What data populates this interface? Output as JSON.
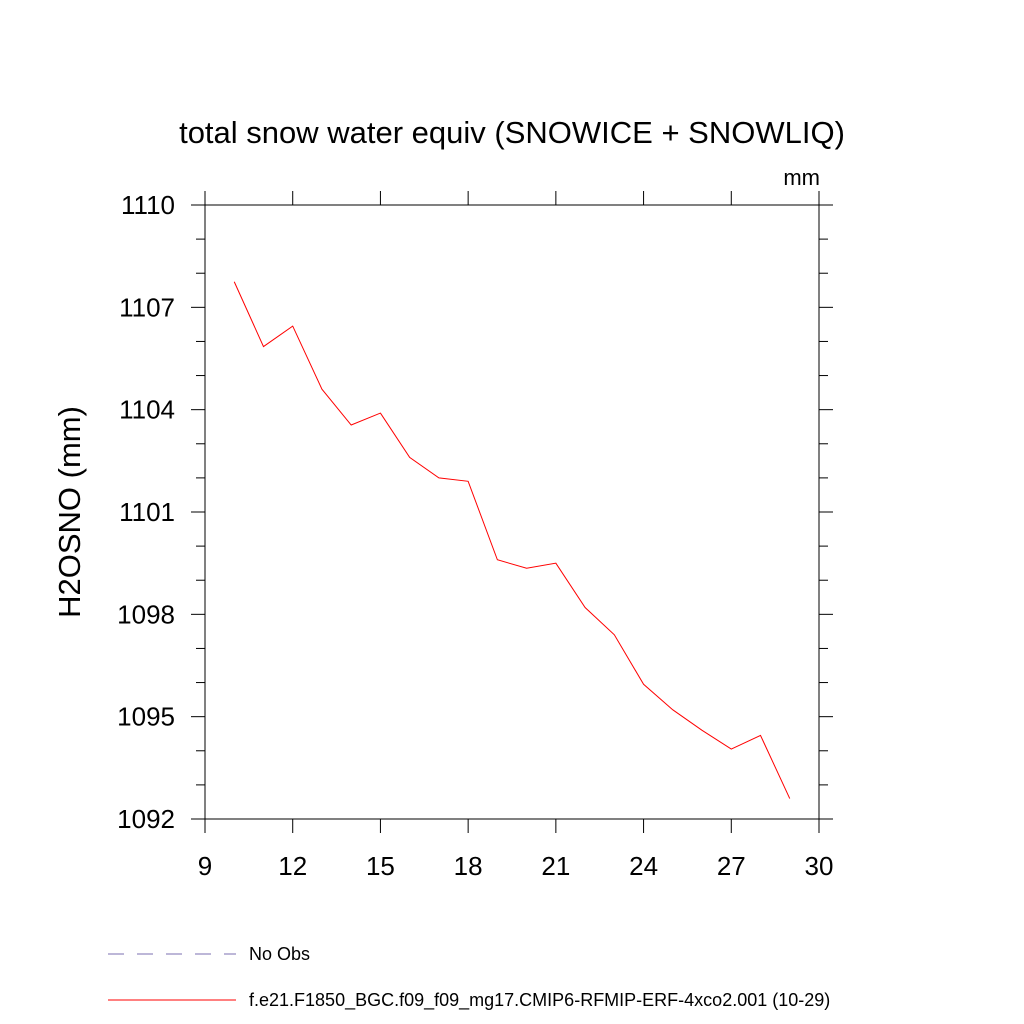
{
  "chart_data": {
    "type": "line",
    "title": "total snow water equiv (SNOWICE + SNOWLIQ)",
    "units": "mm",
    "ylabel": "H2OSNO  (mm)",
    "xlabel": "",
    "xlim": [
      9,
      30
    ],
    "ylim": [
      1092,
      1110
    ],
    "xticks": [
      9,
      12,
      15,
      18,
      21,
      24,
      27,
      30
    ],
    "yticks": [
      1092,
      1095,
      1098,
      1101,
      1104,
      1107,
      1110
    ],
    "grid": false,
    "series": [
      {
        "name": "f.e21.F1850_BGC.f09_f09_mg17.CMIP6-RFMIP-ERF-4xco2.001 (10-29)",
        "color": "#ff0000",
        "style": "solid",
        "x": [
          10,
          11,
          12,
          13,
          14,
          15,
          16,
          17,
          18,
          19,
          20,
          21,
          22,
          23,
          24,
          25,
          26,
          27,
          28,
          29
        ],
        "values": [
          1107.75,
          1105.85,
          1106.45,
          1104.6,
          1103.55,
          1103.9,
          1102.6,
          1102.0,
          1101.9,
          1099.6,
          1099.35,
          1099.5,
          1098.2,
          1097.4,
          1095.95,
          1095.2,
          1094.6,
          1094.05,
          1094.45,
          1092.6
        ]
      }
    ],
    "legend": [
      {
        "label": "No Obs",
        "color": "#7b6fb0",
        "style": "dashed"
      },
      {
        "label": "f.e21.F1850_BGC.f09_f09_mg17.CMIP6-RFMIP-ERF-4xco2.001 (10-29)",
        "color": "#ff0000",
        "style": "solid"
      }
    ],
    "legend_position": "bottom-left"
  }
}
